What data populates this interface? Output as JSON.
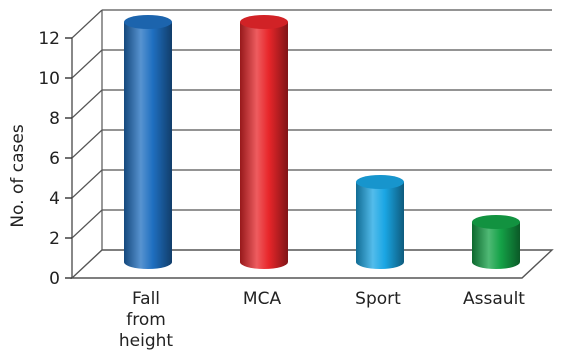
{
  "chart_data": {
    "type": "bar",
    "style": "3d-cylinder",
    "title": "",
    "xlabel": "",
    "ylabel": "No. of cases",
    "ylim": [
      0,
      12
    ],
    "yticks": [
      "0",
      "2",
      "4",
      "6",
      "8",
      "10",
      "12"
    ],
    "categories": [
      [
        "Fall",
        "from",
        "height"
      ],
      [
        "MCA"
      ],
      [
        "Sport"
      ],
      [
        "Assault"
      ]
    ],
    "values": [
      12,
      12,
      4,
      2
    ],
    "colors": [
      "#1f6fc0",
      "#e8262a",
      "#1aa6e4",
      "#14a247"
    ],
    "grid": true,
    "legend": "none"
  }
}
